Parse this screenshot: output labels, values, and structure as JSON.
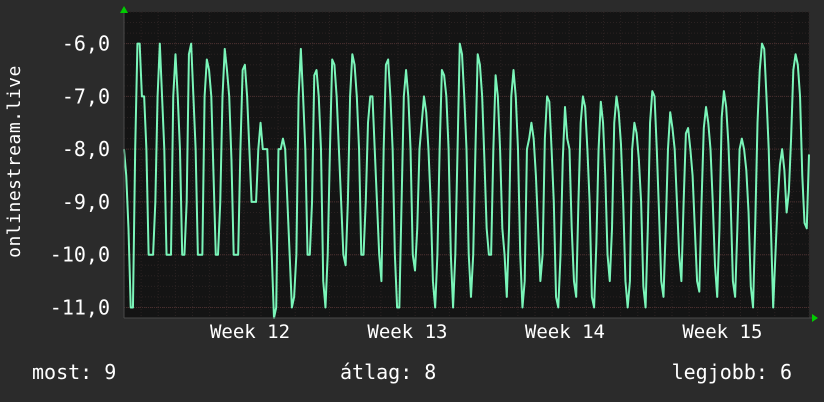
{
  "chart_data": {
    "type": "line",
    "ylabel": "onlinestream.live",
    "ylim": [
      -11.2,
      -5.4
    ],
    "y_ticks": [
      -6,
      -7,
      -8,
      -9,
      -10,
      -11
    ],
    "y_tick_labels": [
      "-6,0",
      "-7,0",
      "-8,0",
      "-9,0",
      "-10,0",
      "-11,0"
    ],
    "x_ticks": [
      "Week 12",
      "Week 13",
      "Week 14",
      "Week 15"
    ],
    "grid": true,
    "colors": {
      "background": "#2b2b2b",
      "plot": "#141414",
      "line": "#7af5b9",
      "grid": "#4a2f2f",
      "axis_arrow": "#00cc00"
    },
    "series": [
      {
        "values": [
          -8,
          -8.5,
          -9.5,
          -11,
          -11,
          -8,
          -6,
          -6,
          -7,
          -7,
          -8,
          -10,
          -10,
          -10,
          -9,
          -7,
          -6,
          -7,
          -8,
          -10,
          -10,
          -10,
          -7,
          -6.2,
          -7,
          -8,
          -10,
          -10,
          -9,
          -6.2,
          -6,
          -7,
          -8,
          -10,
          -10,
          -10,
          -7,
          -6.3,
          -6.5,
          -7,
          -8.5,
          -10,
          -10,
          -9,
          -7,
          -6.1,
          -6.5,
          -7,
          -8.2,
          -10,
          -10,
          -10,
          -8,
          -6.5,
          -6.4,
          -7,
          -8,
          -9,
          -9,
          -9,
          -8,
          -7.5,
          -8,
          -8,
          -8,
          -9,
          -10,
          -11.2,
          -11,
          -8,
          -8,
          -7.8,
          -8,
          -9,
          -10,
          -11,
          -10.8,
          -10,
          -7,
          -6.1,
          -7,
          -8,
          -10,
          -10,
          -9,
          -6.6,
          -6.5,
          -7,
          -8,
          -10.5,
          -11,
          -10,
          -8,
          -6.3,
          -6.4,
          -7,
          -8,
          -9,
          -10,
          -10.2,
          -9,
          -7,
          -6.2,
          -6.4,
          -7,
          -8,
          -10,
          -10,
          -9,
          -7.5,
          -7,
          -7,
          -8,
          -9,
          -10,
          -10.5,
          -8,
          -6.4,
          -6.3,
          -7,
          -8,
          -10,
          -11,
          -11,
          -9,
          -7,
          -6.5,
          -7,
          -8,
          -10,
          -10.3,
          -9.5,
          -8,
          -7.5,
          -7,
          -7.3,
          -8,
          -9,
          -10.5,
          -11,
          -10,
          -8,
          -6.5,
          -6.6,
          -7,
          -8,
          -10,
          -11,
          -10,
          -8,
          -6,
          -6.2,
          -7,
          -8,
          -10,
          -10.8,
          -10,
          -8,
          -6.2,
          -6.4,
          -7,
          -8.2,
          -9.5,
          -10,
          -10,
          -8,
          -6.6,
          -7,
          -8,
          -9.5,
          -10,
          -10.8,
          -9.5,
          -7,
          -6.5,
          -7,
          -8,
          -10,
          -11,
          -10.5,
          -8,
          -7.8,
          -7.5,
          -7.8,
          -8.5,
          -9.5,
          -10.5,
          -10,
          -7.8,
          -7,
          -7.1,
          -8,
          -9,
          -10.8,
          -11,
          -10,
          -8.2,
          -7.2,
          -7.8,
          -8,
          -9.5,
          -10.5,
          -10.8,
          -9,
          -7.5,
          -7,
          -7.2,
          -8,
          -9,
          -10.8,
          -11,
          -9.8,
          -8,
          -7.1,
          -7.5,
          -8.5,
          -10,
          -10.5,
          -9.5,
          -7.5,
          -7,
          -7.3,
          -7.9,
          -9,
          -10.5,
          -11,
          -10.5,
          -8,
          -7.5,
          -7.7,
          -8.2,
          -9,
          -10.6,
          -11,
          -9.5,
          -7.5,
          -6.9,
          -7,
          -8,
          -9.2,
          -10.5,
          -10.8,
          -9.5,
          -8,
          -7.3,
          -7.6,
          -8,
          -9,
          -10,
          -10.5,
          -9,
          -7.7,
          -7.6,
          -8,
          -8.5,
          -9.5,
          -10.5,
          -10.7,
          -9,
          -7.6,
          -7.2,
          -7.5,
          -8,
          -9,
          -10.2,
          -10.8,
          -9.5,
          -7.4,
          -6.9,
          -7.2,
          -7.9,
          -9,
          -10.5,
          -10.8,
          -9.5,
          -8,
          -7.8,
          -8,
          -8.4,
          -9.2,
          -10.6,
          -11,
          -9.4,
          -7.5,
          -6.5,
          -6,
          -6.1,
          -7,
          -8,
          -9.5,
          -11,
          -10,
          -9,
          -8.3,
          -8,
          -8.4,
          -9.2,
          -8.8,
          -7.8,
          -6.5,
          -6.2,
          -6.4,
          -7,
          -8.5,
          -9.4,
          -9.5,
          -8.1
        ]
      }
    ]
  },
  "stats": {
    "current": "most: 9",
    "average": "átlag: 8",
    "max": "legjobb: 6"
  }
}
